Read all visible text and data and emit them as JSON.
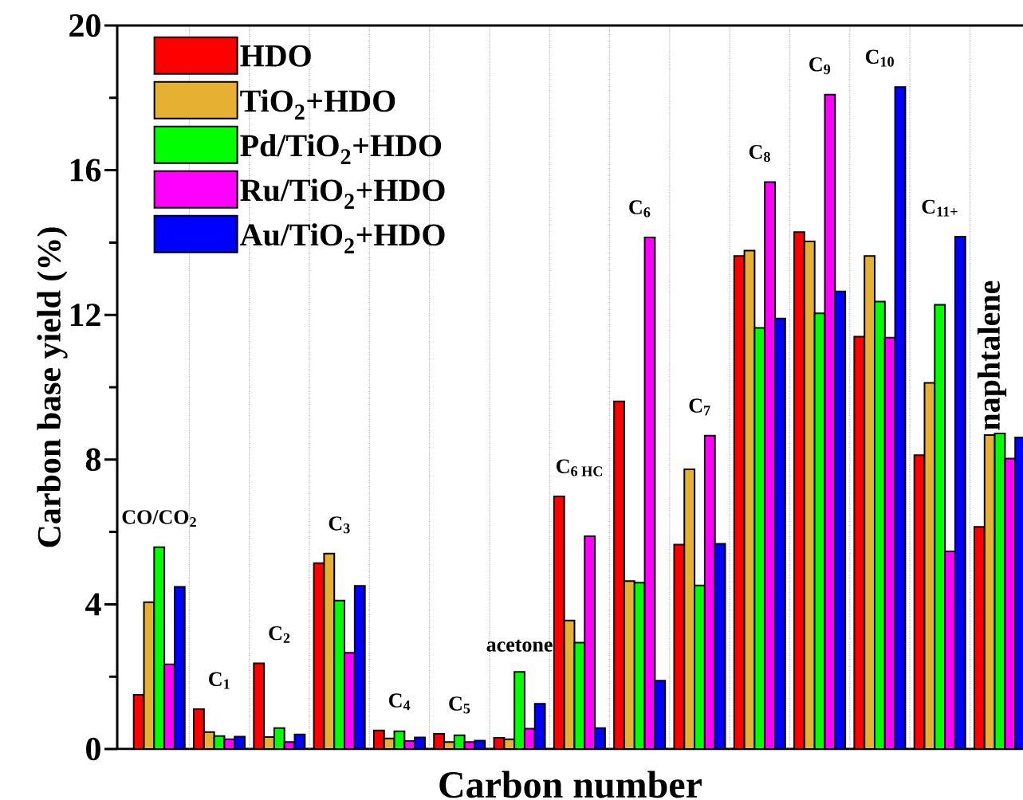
{
  "chart_data": {
    "type": "bar",
    "xlabel": "Carbon number",
    "ylabel": "Carbon base yield (%)",
    "categories": [
      "CO/CO$_{2}$",
      "C$_{1}$",
      "C$_{2}$",
      "C$_{3}$",
      "C$_{4}$",
      "C$_{5}$",
      "acetone",
      "C$_{6 HC}$",
      "C$_{6}$",
      "C$_{7}$",
      "C$_{8}$",
      "C$_{9}$",
      "C$_{10}$",
      "C$_{11+}$",
      "naphtalene"
    ],
    "series": [
      {
        "name": "HDO",
        "color": "#ff0000",
        "values": [
          1.5,
          1.1,
          2.37,
          5.14,
          0.51,
          0.42,
          0.31,
          6.98,
          9.61,
          5.65,
          13.63,
          14.29,
          11.4,
          8.12,
          6.14
        ]
      },
      {
        "name": "TiO$_{2}$+HDO",
        "color": "#e6b032",
        "values": [
          4.06,
          0.47,
          0.33,
          5.4,
          0.29,
          0.19,
          0.27,
          3.55,
          4.64,
          7.73,
          13.78,
          14.03,
          13.63,
          10.12,
          8.68
        ]
      },
      {
        "name": "Pd/TiO$_{2}$+HDO",
        "color": "#00ff00",
        "values": [
          5.58,
          0.36,
          0.58,
          4.1,
          0.49,
          0.38,
          2.13,
          2.94,
          4.6,
          4.52,
          11.64,
          12.04,
          12.37,
          12.28,
          8.72
        ]
      },
      {
        "name": "Ru/TiO$_{2}$+HDO",
        "color": "#ff00ff",
        "values": [
          2.34,
          0.27,
          0.19,
          2.66,
          0.22,
          0.19,
          0.56,
          5.88,
          14.14,
          8.66,
          15.67,
          18.09,
          11.37,
          5.46,
          8.03
        ]
      },
      {
        "name": "Au/TiO$_{2}$+HDO",
        "color": "#0000ff",
        "values": [
          4.48,
          0.34,
          0.4,
          4.51,
          0.32,
          0.23,
          1.25,
          0.58,
          1.89,
          5.67,
          11.9,
          12.65,
          18.3,
          14.16,
          8.61
        ]
      }
    ],
    "ylim": [
      0,
      20
    ],
    "yticks": [
      0,
      4,
      8,
      12,
      16,
      20
    ],
    "grid": "x",
    "legend": "top left"
  }
}
